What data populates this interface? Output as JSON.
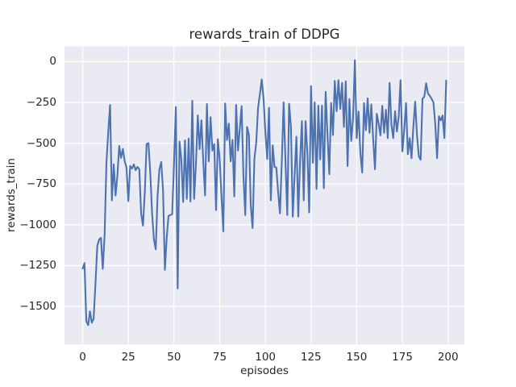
{
  "style": {
    "figure_bg": "#ffffff",
    "axes_bg": "#eaeaf2",
    "grid_color": "#ffffff",
    "line_color": "#4c72b0",
    "text_color": "#262626"
  },
  "chart_data": {
    "type": "line",
    "title": "rewards_train of DDPG",
    "xlabel": "episodes",
    "ylabel": "rewards_train",
    "legend": false,
    "grid": true,
    "x_tick_values": [
      0,
      25,
      50,
      75,
      100,
      125,
      150,
      175,
      200
    ],
    "x_tick_labels": [
      "0",
      "25",
      "50",
      "75",
      "100",
      "125",
      "150",
      "175",
      "200"
    ],
    "y_tick_values": [
      0,
      -250,
      -500,
      -750,
      -1000,
      -1250,
      -1500
    ],
    "y_tick_labels": [
      "0",
      "−250",
      "−500",
      "−750",
      "−1000",
      "−1250",
      "−1500"
    ],
    "xlim": [
      -9.95,
      208.95
    ],
    "ylim": [
      -1733,
      93
    ],
    "x_start": 0,
    "x_step": 1,
    "series": [
      {
        "name": "rewards_train",
        "color": "#4c72b0",
        "values": [
          -1268,
          -1235,
          -1590,
          -1615,
          -1530,
          -1600,
          -1575,
          -1360,
          -1130,
          -1090,
          -1080,
          -1270,
          -1065,
          -620,
          -430,
          -266,
          -850,
          -630,
          -820,
          -700,
          -517,
          -590,
          -535,
          -610,
          -650,
          -855,
          -640,
          -655,
          -630,
          -665,
          -645,
          -660,
          -930,
          -1005,
          -800,
          -505,
          -500,
          -680,
          -930,
          -1090,
          -1150,
          -820,
          -660,
          -615,
          -790,
          -1276,
          -1080,
          -945,
          -940,
          -935,
          -620,
          -278,
          -1390,
          -490,
          -600,
          -860,
          -483,
          -841,
          -471,
          -857,
          -240,
          -841,
          -627,
          -330,
          -537,
          -360,
          -611,
          -820,
          -260,
          -611,
          -340,
          -545,
          -505,
          -910,
          -475,
          -600,
          -830,
          -1040,
          -256,
          -480,
          -380,
          -611,
          -480,
          -826,
          -265,
          -545,
          -413,
          -273,
          -700,
          -940,
          -400,
          -450,
          -880,
          -1020,
          -596,
          -497,
          -283,
          -200,
          -109,
          -225,
          -431,
          -596,
          -283,
          -850,
          -513,
          -645,
          -650,
          -800,
          -930,
          -611,
          -250,
          -611,
          -940,
          -258,
          -398,
          -950,
          -700,
          -460,
          -950,
          -611,
          -365,
          -850,
          -365,
          -560,
          -924,
          -150,
          -620,
          -250,
          -780,
          -270,
          -600,
          -270,
          -776,
          -185,
          -447,
          -690,
          -254,
          -450,
          -118,
          -304,
          -114,
          -290,
          -130,
          -400,
          -121,
          -640,
          -230,
          -486,
          -350,
          8,
          -469,
          -306,
          -560,
          -680,
          -254,
          -420,
          -225,
          -436,
          -262,
          -470,
          -660,
          -320,
          -380,
          -452,
          -271,
          -436,
          -296,
          -469,
          -130,
          -387,
          -469,
          -304,
          -428,
          -337,
          -114,
          -550,
          -420,
          -254,
          -567,
          -469,
          -592,
          -400,
          -245,
          -450,
          -580,
          -601,
          -228,
          -215,
          -133,
          -195,
          -210,
          -228,
          -250,
          -384,
          -592,
          -335,
          -360,
          -330,
          -468,
          -116
        ]
      }
    ]
  }
}
